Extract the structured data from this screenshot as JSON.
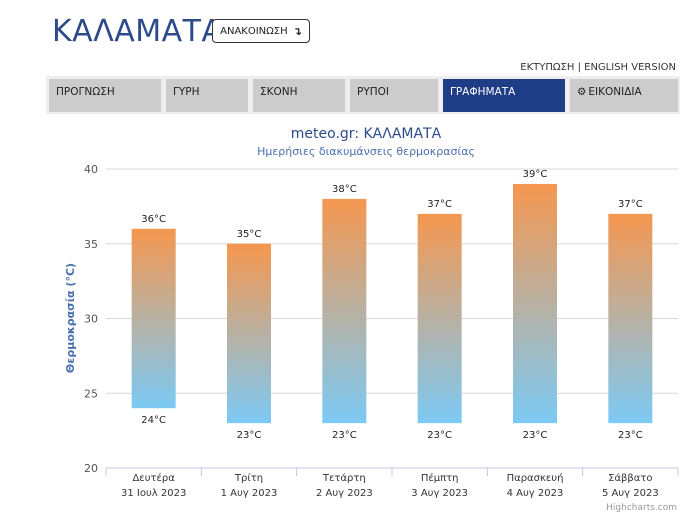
{
  "header": {
    "city": "ΚΑΛΑΜΑΤΑ",
    "announce_label": "ΑΝΑΚΟΙΝΩΣΗ",
    "announce_icon": "arrow-down-corner-icon",
    "print_link": "ΕΚΤΥΠΩΣΗ",
    "separator": "|",
    "english_link": "ENGLISH VERSION"
  },
  "tabs": [
    {
      "label": "ΠΡΟΓΝΩΣΗ"
    },
    {
      "label": "ΓΥΡΗ"
    },
    {
      "label": "ΣΚΟΝΗ"
    },
    {
      "label": "ΡΥΠΟΙ"
    },
    {
      "label": "ΓΡΑΦΗΜΑΤΑ",
      "active": true
    },
    {
      "label": "ΕΙΚΟΝΙΔΙΑ",
      "icon": "gear-icon"
    }
  ],
  "colors": {
    "accent": "#1f3d87",
    "bar_top": "#f5974f",
    "bar_bottom": "#7ccaf5",
    "title": "#2d4a8a"
  },
  "chart_data": {
    "type": "bar",
    "title": "meteo.gr: ΚΑΛΑΜΑΤΑ",
    "subtitle": "Ημερήσιες διακυμάνσεις θερμοκρασίας",
    "ylabel": "Θερμοκρασία (°C)",
    "ylim": [
      20,
      40
    ],
    "yticks": [
      20,
      25,
      30,
      35,
      40
    ],
    "grid": true,
    "categories": [
      [
        "Δευτέρα",
        "31 Ιουλ 2023"
      ],
      [
        "Τρίτη",
        "1 Αυγ 2023"
      ],
      [
        "Τετάρτη",
        "2 Αυγ 2023"
      ],
      [
        "Πέμπτη",
        "3 Αυγ 2023"
      ],
      [
        "Παρασκευή",
        "4 Αυγ 2023"
      ],
      [
        "Σάββατο",
        "5 Αυγ 2023"
      ]
    ],
    "series": [
      {
        "low": [
          24,
          23,
          23,
          23,
          23,
          23
        ],
        "high": [
          36,
          35,
          38,
          37,
          39,
          37
        ]
      }
    ],
    "high_labels": [
      "36°C",
      "35°C",
      "38°C",
      "37°C",
      "39°C",
      "37°C"
    ],
    "low_labels": [
      "24°C",
      "23°C",
      "23°C",
      "23°C",
      "23°C",
      "23°C"
    ],
    "credit": "Highcharts.com"
  }
}
